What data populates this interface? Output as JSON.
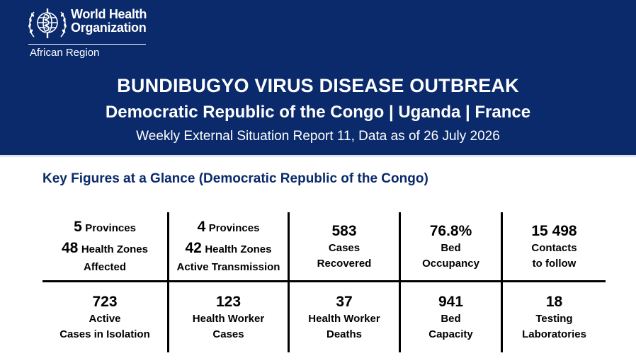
{
  "header": {
    "org_line1": "World Health",
    "org_line2": "Organization",
    "region": "African Region",
    "title": "BUNDIBUGYO VIRUS DISEASE OUTBREAK",
    "countries": "Democratic Republic of the Congo | Uganda | France",
    "report": "Weekly External Situation Report 11, Data as of 26 July 2026"
  },
  "section": {
    "title": "Key Figures at a Glance (Democratic Republic of the Congo)"
  },
  "figures": {
    "affected": {
      "provinces_value": "5",
      "provinces_label": "Provinces",
      "zones_value": "48",
      "zones_label": "Health Zones",
      "caption": "Affected"
    },
    "transmission": {
      "provinces_value": "4",
      "provinces_label": "Provinces",
      "zones_value": "42",
      "zones_label": "Health Zones",
      "caption": "Active Transmission"
    },
    "recovered": {
      "value": "583",
      "label1": "Cases",
      "label2": "Recovered"
    },
    "occupancy": {
      "value": "76.8%",
      "label1": "Bed",
      "label2": "Occupancy"
    },
    "contacts": {
      "value": "15 498",
      "label1": "Contacts",
      "label2": "to follow"
    },
    "isolation": {
      "value": "723",
      "label1": "Active",
      "label2": "Cases in Isolation"
    },
    "hw_cases": {
      "value": "123",
      "label1": "Health Worker",
      "label2": "Cases"
    },
    "hw_deaths": {
      "value": "37",
      "label1": "Health Worker",
      "label2": "Deaths"
    },
    "capacity": {
      "value": "941",
      "label1": "Bed",
      "label2": "Capacity"
    },
    "labs": {
      "value": "18",
      "label1": "Testing",
      "label2": "Laboratories"
    }
  }
}
